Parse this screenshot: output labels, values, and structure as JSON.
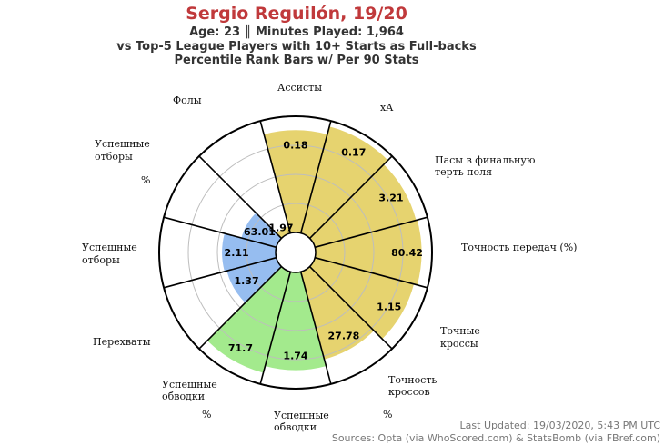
{
  "chart_data": {
    "type": "polar-bar",
    "title": "Sergio Reguilón, 19/20",
    "subtitle_lines": [
      "Age: 23 ║ Minutes Played: 1,964",
      "vs Top-5 League Players with 10+ Starts as Full-backs",
      "Percentile Rank Bars w/ Per 90 Stats"
    ],
    "footer_lines": [
      "Last Updated: 19/03/2020, 5:43 PM UTC",
      "Sources: Opta (via WhoScored.com) & StatsBomb (via FBref.com)"
    ],
    "value_unit": "percentile rank",
    "rlim": [
      0,
      100
    ],
    "grid": true,
    "categories": [
      {
        "label": "Ассисты",
        "value_label": "0.18",
        "percentile": 88,
        "color": "#e6d36f"
      },
      {
        "label": "xA",
        "value_label": "0.17",
        "percentile": 95,
        "color": "#e6d36f"
      },
      {
        "label": "Пасы в финальную терть поля",
        "value_label": "3.21",
        "percentile": 90,
        "color": "#e6d36f"
      },
      {
        "label": "Точность передач (%)",
        "value_label": "80.42",
        "percentile": 91,
        "color": "#e6d36f"
      },
      {
        "label": "Точные кроссы",
        "value_label": "1.15",
        "percentile": 88,
        "color": "#e6d36f"
      },
      {
        "label": "Точность кроссов %",
        "value_label": "27.78",
        "percentile": 78,
        "color": "#e6d36f"
      },
      {
        "label": "Успешные обводки",
        "value_label": "1.74",
        "percentile": 84,
        "color": "#a3ea8d"
      },
      {
        "label": "Успешные обводки %",
        "value_label": "71.7",
        "percentile": 90,
        "color": "#a3ea8d"
      },
      {
        "label": "Перехваты",
        "value_label": "1.37",
        "percentile": 44,
        "color": "#96bdf0"
      },
      {
        "label": "Успешные отборы",
        "value_label": "2.11",
        "percentile": 46,
        "color": "#96bdf0"
      },
      {
        "label": "Успешные отборы %",
        "value_label": "63.01",
        "percentile": 31,
        "color": "#96bdf0"
      },
      {
        "label": "Фолы",
        "value_label": "1.97",
        "percentile": 6,
        "color": "#e6d36f"
      }
    ]
  },
  "axis_labels": {
    "assists": "Ассисты",
    "xa": "xA",
    "final_third_1": "Пасы в финальную",
    "final_third_2": "терть поля",
    "pass_acc": "Точность передач (%)",
    "crosses_1": "Точные",
    "crosses_2": "кроссы",
    "cross_acc_1": "Точность",
    "cross_acc_2": "кроссов",
    "cross_acc_3": "%",
    "dribbles_1": "Успешные",
    "dribbles_2": "обводки",
    "dribble_pct_1": "Успешные",
    "dribble_pct_2": "обводки",
    "dribble_pct_3": "%",
    "interceptions": "Перехваты",
    "tackles_1": "Успешные",
    "tackles_2": "отборы",
    "tackle_pct_1": "Успешные",
    "tackle_pct_2": "отборы",
    "tackle_pct_3": "%",
    "fouls": "Фолы"
  }
}
